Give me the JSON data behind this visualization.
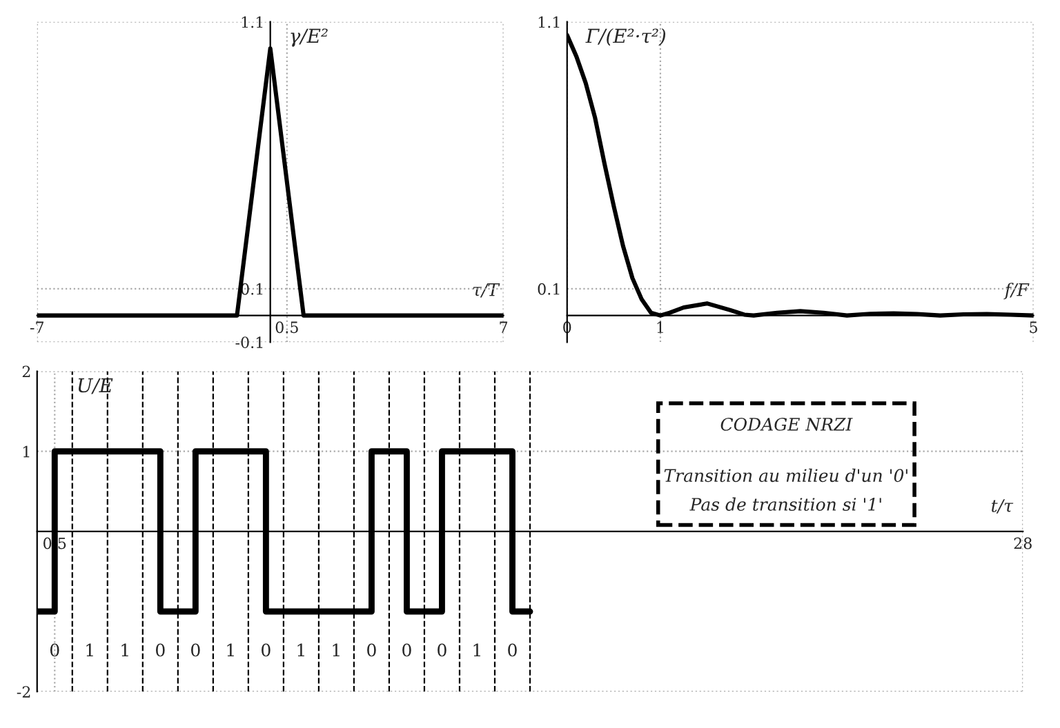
{
  "chart_data": [
    {
      "type": "line",
      "xlabel": "τ/T",
      "ylabel": "γ/E²",
      "x": [
        -7,
        -1,
        0,
        1,
        7
      ],
      "series": [
        {
          "color": "#000000",
          "values": [
            0,
            0,
            1,
            0,
            0
          ]
        }
      ],
      "xlim": [
        -7,
        7
      ],
      "ylim": [
        -0.1,
        1.1
      ],
      "xticks": [
        -7,
        0.5,
        7
      ],
      "yticks": [
        -0.1,
        0.1,
        1.1
      ],
      "grid": true,
      "legend": false
    },
    {
      "type": "line",
      "xlabel": "f/F",
      "ylabel": "Γ/(E²·τ²)",
      "x": [
        0,
        0.1,
        0.2,
        0.3,
        0.4,
        0.5,
        0.6,
        0.7,
        0.8,
        0.9,
        1,
        1.1,
        1.25,
        1.5,
        1.75,
        1.9,
        2,
        2.25,
        2.5,
        2.75,
        3,
        3.25,
        3.5,
        3.75,
        4,
        4.25,
        4.5,
        4.75,
        5
      ],
      "series": [
        {
          "color": "#000000",
          "values": [
            1.05,
            0.97,
            0.87,
            0.74,
            0.57,
            0.41,
            0.26,
            0.14,
            0.06,
            0.01,
            0,
            0.01,
            0.03,
            0.045,
            0.02,
            0.003,
            0,
            0.01,
            0.016,
            0.01,
            0,
            0.006,
            0.008,
            0.005,
            0,
            0.004,
            0.005,
            0.003,
            0
          ]
        }
      ],
      "xlim": [
        0,
        5
      ],
      "ylim": [
        -0.1,
        1.1
      ],
      "xticks": [
        0,
        1,
        5
      ],
      "yticks": [
        0.1,
        1.1
      ],
      "grid": true,
      "legend": false
    },
    {
      "type": "step",
      "xlabel": "t/τ",
      "ylabel": "U/E",
      "x": [
        0,
        0.5,
        3.5,
        4.5,
        6.5,
        9.5,
        10.5,
        11.5,
        13.5,
        14
      ],
      "series": [
        {
          "color": "#000000",
          "values": [
            -1,
            1,
            -1,
            1,
            -1,
            1,
            -1,
            1,
            -1,
            -1
          ]
        }
      ],
      "xlim": [
        0,
        28
      ],
      "ylim": [
        -2,
        2
      ],
      "xticks": [
        0.5,
        28
      ],
      "yticks": [
        -2,
        1,
        2
      ],
      "grid": true,
      "legend": false,
      "ref_lines": [
        {
          "axis": "x",
          "value": 1,
          "color": "#000000",
          "line_style": "dashed"
        },
        {
          "axis": "x",
          "value": 2,
          "color": "#000000",
          "line_style": "dashed"
        },
        {
          "axis": "x",
          "value": 3,
          "color": "#000000",
          "line_style": "dashed"
        },
        {
          "axis": "x",
          "value": 4,
          "color": "#000000",
          "line_style": "dashed"
        },
        {
          "axis": "x",
          "value": 5,
          "color": "#000000",
          "line_style": "dashed"
        },
        {
          "axis": "x",
          "value": 6,
          "color": "#000000",
          "line_style": "dashed"
        },
        {
          "axis": "x",
          "value": 7,
          "color": "#000000",
          "line_style": "dashed"
        },
        {
          "axis": "x",
          "value": 8,
          "color": "#000000",
          "line_style": "dashed"
        },
        {
          "axis": "x",
          "value": 9,
          "color": "#000000",
          "line_style": "dashed"
        },
        {
          "axis": "x",
          "value": 10,
          "color": "#000000",
          "line_style": "dashed"
        },
        {
          "axis": "x",
          "value": 11,
          "color": "#000000",
          "line_style": "dashed"
        },
        {
          "axis": "x",
          "value": 12,
          "color": "#000000",
          "line_style": "dashed"
        },
        {
          "axis": "x",
          "value": 13,
          "color": "#000000",
          "line_style": "dashed"
        },
        {
          "axis": "x",
          "value": 14,
          "color": "#000000",
          "line_style": "dashed"
        }
      ],
      "annotations": [
        "CODAGE NRZI",
        "Transition au milieu d'un '0'",
        "Pas de transition si '1'",
        "0",
        "1",
        "1",
        "0",
        "0",
        "1",
        "0",
        "1",
        "1",
        "0",
        "0",
        "0",
        "1",
        "0"
      ]
    }
  ]
}
